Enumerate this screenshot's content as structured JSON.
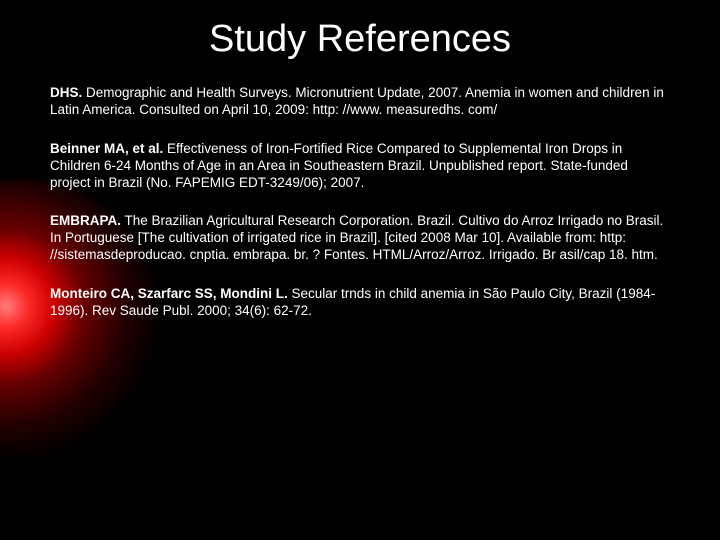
{
  "title": "Study References",
  "background_color": "#000000",
  "text_color": "#ffffff",
  "glow": {
    "center_color": "#ff8080",
    "mid_color": "#ff2a2a",
    "dark_color": "#660000",
    "position": "left-center"
  },
  "typography": {
    "family": "Comic Sans MS",
    "title_fontsize_pt": 28,
    "body_fontsize_pt": 10
  },
  "references": [
    {
      "lead": "DHS.",
      "body": " Demographic and Health Surveys. Micronutrient Update, 2007. Anemia in women and children in Latin America. Consulted on April 10, 2009: http: //www. measuredhs. com/"
    },
    {
      "lead": "Beinner MA, et al.",
      "body": " Effectiveness of Iron-Fortified Rice Compared to Supplemental Iron Drops in Children 6-24 Months of Age in an Area in Southeastern Brazil. Unpublished report. State-funded project in Brazil (No. FAPEMIG EDT-3249/06); 2007."
    },
    {
      "lead": "EMBRAPA.",
      "body": " The Brazilian Agricultural Research Corporation. Brazil. Cultivo do Arroz Irrigado no Brasil. In Portuguese [The cultivation of irrigated rice in Brazil]. [cited 2008 Mar 10]. Available from: http: //sistemasdeproducao. cnptia. embrapa. br. ? Fontes. HTML/Arroz/Arroz. Irrigado. Br asil/cap 18. htm."
    },
    {
      "lead": "Monteiro CA, Szarfarc SS, Mondini L.",
      "body": " Secular trnds in child anemia in São Paulo City, Brazil (1984-1996). Rev Saude Publ. 2000; 34(6): 62-72."
    }
  ]
}
